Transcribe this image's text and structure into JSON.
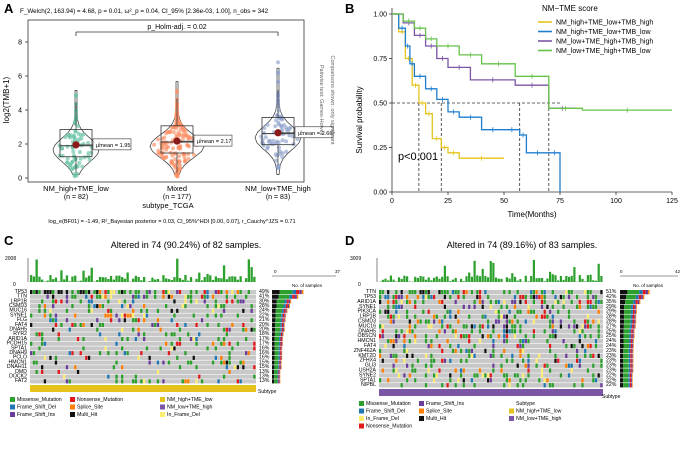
{
  "panels": {
    "A": {
      "letter": "A",
      "stats_header": "F_Welch(2, 163.94) = 4.68, p = 0.01, ω²_p = 0.04, CI_95% [2.36e-03, 1.00], n_obs = 342",
      "y_label": "log2(TMB+1)",
      "y_ticks": [
        "8",
        "6",
        "4",
        "2",
        "0"
      ],
      "x_title": "subtype_TCGA",
      "groups": [
        {
          "name": "NM_high+TME_low",
          "n": "(n = 82)",
          "mean_label": "μ̂mean = 1.95",
          "color": "#66c2a5",
          "mean": 1.95
        },
        {
          "name": "Mixed",
          "n": "(n = 177)",
          "mean_label": "μ̂mean = 2.17",
          "color": "#fc8d62",
          "mean": 2.17
        },
        {
          "name": "NM_low+TME_high",
          "n": "(n = 83)",
          "mean_label": "μ̂mean = 2.66",
          "color": "#8da0cb",
          "mean": 2.66
        }
      ],
      "pairwise_label": "p_Holm-adj. = 0.02",
      "side_text": [
        "Pairwise test: Games-Howell",
        "Comparisons shown: only significant"
      ],
      "bayes_footer": "log_e(BF01) = -1.49, R²_Bayesian posterior = 0.03, CI_95%^HDI [0.00, 0.07], r_Cauchy^JZS = 0.71"
    },
    "B": {
      "letter": "B",
      "legend_title": "NM−TME score",
      "legend_items": [
        {
          "label": "NM_high+TME_low+TMB_high",
          "color": "#e6c31c"
        },
        {
          "label": "NM_high+TME_low+TMB_low",
          "color": "#1f7fcf"
        },
        {
          "label": "NM_low+TME_high+TMB_high",
          "color": "#7b55a6"
        },
        {
          "label": "NM_low+TME_high+TMB_low",
          "color": "#66c24a"
        }
      ],
      "y_label": "Survival probability",
      "x_label": "Time(Months)",
      "y_ticks": [
        "1.00",
        "0.75",
        "0.50",
        "0.25",
        "0.00"
      ],
      "x_ticks": [
        "0",
        "25",
        "50",
        "75",
        "100",
        "125"
      ],
      "p_value": "p<0.001"
    },
    "C": {
      "letter": "C",
      "title": "Altered in 74 (90.24%) of 82 samples.",
      "tmb_max": "2008",
      "tmb_zero": "0",
      "axis_zero": "0",
      "axis_max": "37",
      "axis_label": "No. of samples",
      "subtype_label": "Subtype",
      "subtype_color": "#e6c31c",
      "genes": [
        {
          "name": "TP53",
          "pct": "49%"
        },
        {
          "name": "TTN",
          "pct": "41%"
        },
        {
          "name": "LRP1B",
          "pct": "30%"
        },
        {
          "name": "CSMD3",
          "pct": "28%"
        },
        {
          "name": "MUC16",
          "pct": "24%"
        },
        {
          "name": "SYNE1",
          "pct": "22%"
        },
        {
          "name": "FLG",
          "pct": "21%"
        },
        {
          "name": "FAT4",
          "pct": "20%"
        },
        {
          "name": "DNAH5",
          "pct": "20%"
        },
        {
          "name": "RYR2",
          "pct": "18%"
        },
        {
          "name": "ARID1A",
          "pct": "17%"
        },
        {
          "name": "PCDH15",
          "pct": "17%"
        },
        {
          "name": "SPTA1",
          "pct": "16%"
        },
        {
          "name": "DNAH9",
          "pct": "16%"
        },
        {
          "name": "PCLO",
          "pct": "16%"
        },
        {
          "name": "HMCN1",
          "pct": "15%"
        },
        {
          "name": "DNAH11",
          "pct": "15%"
        },
        {
          "name": "DMD",
          "pct": "13%"
        },
        {
          "name": "DOCK2",
          "pct": "13%"
        },
        {
          "name": "FAT2",
          "pct": "13%"
        }
      ],
      "legend": [
        {
          "label": "Missense_Mutation",
          "color": "#2ca02c"
        },
        {
          "label": "Nonsense_Mutation",
          "color": "#e31a1c"
        },
        {
          "label": "NM_high+TME_low",
          "color": "#e6c31c"
        },
        {
          "label": "Frame_Shift_Del",
          "color": "#1f78b4"
        },
        {
          "label": "Splice_Site",
          "color": "#ff7f00"
        },
        {
          "label": "NM_low+TME_high",
          "color": "#7b55a6"
        },
        {
          "label": "Frame_Shift_Ins",
          "color": "#6a3d9a"
        },
        {
          "label": "Multi_Hit",
          "color": "#111111"
        },
        {
          "label": "In_Frame_Del",
          "color": "#ffed6f"
        }
      ]
    },
    "D": {
      "letter": "D",
      "title": "Altered in 74 (89.16%) of 83 samples.",
      "tmb_max": "3009",
      "tmb_zero": "0",
      "axis_zero": "0",
      "axis_max": "42",
      "axis_label": "No. of samples",
      "subtype_label": "Subtype",
      "subtype_color": "#7b55a6",
      "genes": [
        {
          "name": "TTN",
          "pct": "51%"
        },
        {
          "name": "TP53",
          "pct": "42%"
        },
        {
          "name": "ARID1A",
          "pct": "35%"
        },
        {
          "name": "SYNE1",
          "pct": "29%"
        },
        {
          "name": "PIK3CA",
          "pct": "29%"
        },
        {
          "name": "LRP1B",
          "pct": "28%"
        },
        {
          "name": "CSMD3",
          "pct": "28%"
        },
        {
          "name": "MUC16",
          "pct": "27%"
        },
        {
          "name": "DNAH5",
          "pct": "25%"
        },
        {
          "name": "OBSCN",
          "pct": "25%"
        },
        {
          "name": "HMCN1",
          "pct": "24%"
        },
        {
          "name": "FAT4",
          "pct": "24%"
        },
        {
          "name": "ZNF462A",
          "pct": "23%"
        },
        {
          "name": "KMT2D",
          "pct": "23%"
        },
        {
          "name": "ZFHX4",
          "pct": "23%"
        },
        {
          "name": "GLI3",
          "pct": "23%"
        },
        {
          "name": "USH2A",
          "pct": "23%"
        },
        {
          "name": "SYNE2",
          "pct": "22%"
        },
        {
          "name": "SPTA1",
          "pct": "22%"
        },
        {
          "name": "NIPBL",
          "pct": "22%"
        }
      ],
      "legend": [
        {
          "label": "Missense_Mutation",
          "color": "#2ca02c"
        },
        {
          "label": "Frame_Shift_Ins",
          "color": "#6a3d9a"
        },
        {
          "label": "Subtype",
          "color": ""
        },
        {
          "label": "Frame_Shift_Del",
          "color": "#1f78b4"
        },
        {
          "label": "Splice_Site",
          "color": "#ff7f00"
        },
        {
          "label": "NM_high+TME_low",
          "color": "#e6c31c"
        },
        {
          "label": "In_Frame_Del",
          "color": "#ffed6f"
        },
        {
          "label": "Multi_Hit",
          "color": "#111111"
        },
        {
          "label": "NM_low+TME_high",
          "color": "#7b55a6"
        },
        {
          "label": "Nonsense_Mutation",
          "color": "#e31a1c"
        }
      ]
    }
  },
  "chart_data": [
    {
      "type": "violin-box-scatter",
      "title": "",
      "xlabel": "subtype_TCGA",
      "ylabel": "log2(TMB+1)",
      "ylim": [
        0,
        9
      ],
      "categories": [
        "NM_high+TME_low",
        "Mixed",
        "NM_low+TME_high"
      ],
      "n": [
        82,
        177,
        83
      ],
      "means": [
        1.95,
        2.17,
        2.66
      ]
    },
    {
      "type": "line",
      "title": "NM−TME score",
      "xlabel": "Time(Months)",
      "ylabel": "Survival probability",
      "xlim": [
        0,
        125
      ],
      "ylim": [
        0,
        1
      ],
      "series": [
        {
          "name": "NM_high+TME_low+TMB_high",
          "x": [
            0,
            3,
            6,
            9,
            12,
            15,
            18,
            22,
            25,
            30,
            50
          ],
          "y": [
            1.0,
            0.9,
            0.75,
            0.6,
            0.5,
            0.44,
            0.3,
            0.25,
            0.22,
            0.19,
            0.19
          ]
        },
        {
          "name": "NM_high+TME_low+TMB_low",
          "x": [
            0,
            3,
            6,
            8,
            10,
            15,
            20,
            25,
            30,
            40,
            50,
            57,
            60,
            70,
            75
          ],
          "y": [
            1.0,
            0.92,
            0.82,
            0.72,
            0.65,
            0.58,
            0.52,
            0.45,
            0.42,
            0.35,
            0.35,
            0.32,
            0.22,
            0.22,
            0.0
          ]
        },
        {
          "name": "NM_low+TME_high+TMB_high",
          "x": [
            0,
            5,
            10,
            15,
            20,
            25,
            35,
            55,
            70,
            82
          ],
          "y": [
            1.0,
            0.95,
            0.88,
            0.82,
            0.75,
            0.7,
            0.63,
            0.6,
            0.47,
            0.47
          ]
        },
        {
          "name": "NM_low+TME_high+TMB_low",
          "x": [
            0,
            5,
            10,
            15,
            20,
            30,
            40,
            55,
            70,
            85,
            125
          ],
          "y": [
            1.0,
            0.96,
            0.92,
            0.86,
            0.82,
            0.77,
            0.72,
            0.65,
            0.47,
            0.46,
            0.46
          ]
        }
      ],
      "annotations": [
        "p<0.001"
      ]
    }
  ]
}
